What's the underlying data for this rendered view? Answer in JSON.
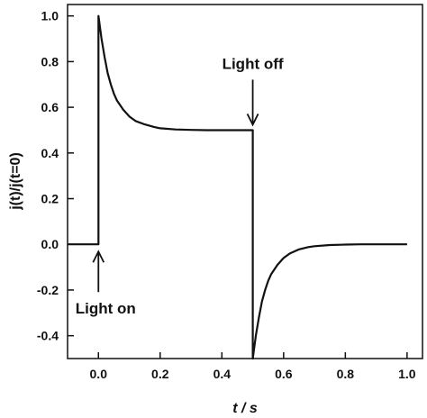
{
  "chart_data": {
    "type": "line",
    "xlabel": "t / s",
    "ylabel": "j(t)/j(t=0)",
    "xlim": [
      -0.1,
      1.05
    ],
    "ylim": [
      -0.5,
      1.05
    ],
    "x_ticks": [
      0.0,
      0.2,
      0.4,
      0.6,
      0.8,
      1.0
    ],
    "x_tick_labels": [
      "0.0",
      "0.2",
      "0.4",
      "0.6",
      "0.8",
      "1.0"
    ],
    "y_ticks": [
      -0.4,
      -0.2,
      0.0,
      0.2,
      0.4,
      0.6,
      0.8,
      1.0
    ],
    "y_tick_labels": [
      "-0.4",
      "-0.2",
      "0.0",
      "0.2",
      "0.4",
      "0.6",
      "0.8",
      "1.0"
    ],
    "grid": false,
    "legend": "none",
    "series": [
      {
        "color": "#111111",
        "x": [
          -0.1,
          0.0,
          0.0,
          0.01,
          0.02,
          0.03,
          0.04,
          0.05,
          0.06,
          0.08,
          0.1,
          0.12,
          0.15,
          0.18,
          0.2,
          0.25,
          0.3,
          0.35,
          0.4,
          0.45,
          0.5,
          0.5,
          0.51,
          0.52,
          0.53,
          0.54,
          0.55,
          0.56,
          0.58,
          0.6,
          0.62,
          0.65,
          0.68,
          0.7,
          0.75,
          0.8,
          0.85,
          0.9,
          1.0
        ],
        "y": [
          0.0,
          0.0,
          1.0,
          0.9,
          0.82,
          0.75,
          0.7,
          0.66,
          0.63,
          0.59,
          0.56,
          0.54,
          0.525,
          0.514,
          0.508,
          0.503,
          0.501,
          0.5,
          0.5,
          0.5,
          0.5,
          -0.5,
          -0.4,
          -0.32,
          -0.25,
          -0.2,
          -0.16,
          -0.13,
          -0.09,
          -0.06,
          -0.04,
          -0.022,
          -0.012,
          -0.008,
          -0.003,
          -0.001,
          0.0,
          0.0,
          0.0
        ]
      }
    ],
    "annotations": [
      {
        "text": "Light off",
        "x": 0.5,
        "y": 0.5,
        "position": "above"
      },
      {
        "text": "Light on",
        "x": 0.0,
        "y": 0.0,
        "position": "below"
      }
    ]
  }
}
